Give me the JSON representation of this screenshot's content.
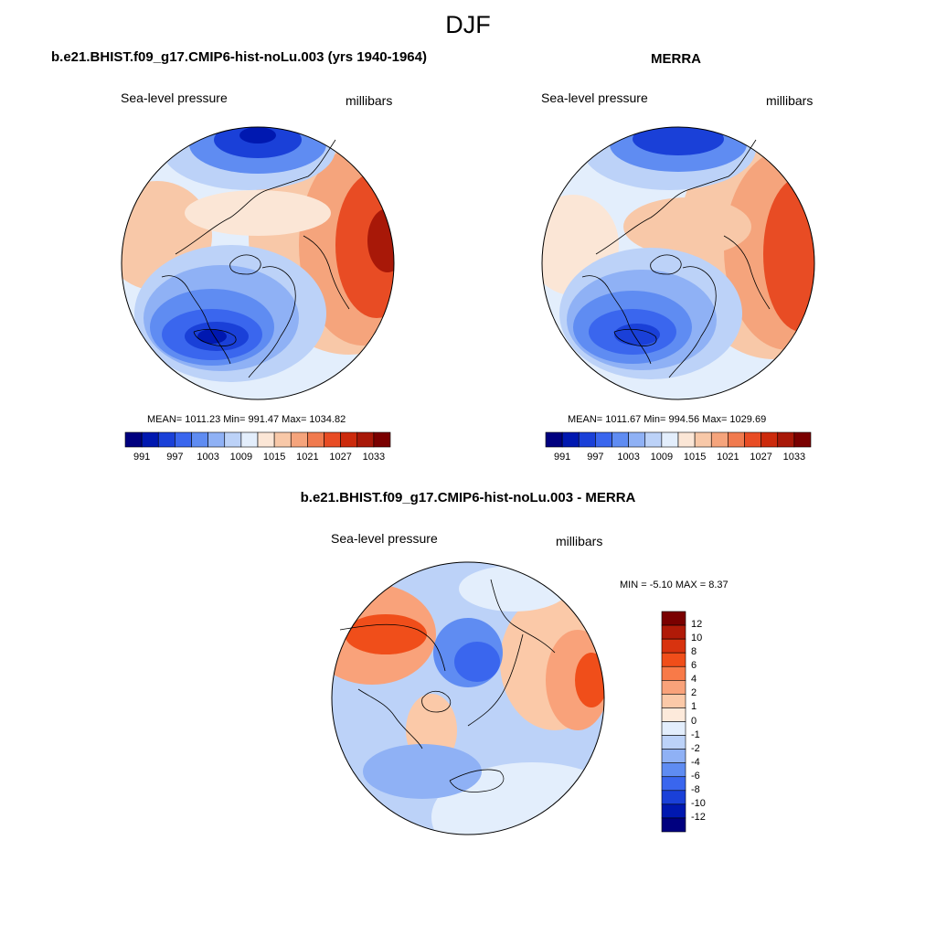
{
  "figure": {
    "title": "DJF"
  },
  "panels": [
    {
      "title": "b.e21.BHIST.f09_g17.CMIP6-hist-noLu.003 (yrs 1940-1964)",
      "variable": "Sea-level pressure",
      "units": "millibars",
      "stats": "MEAN= 1011.23  Min= 991.47  Max= 1034.82"
    },
    {
      "title": "MERRA",
      "variable": "Sea-level pressure",
      "units": "millibars",
      "stats": "MEAN= 1011.67  Min= 994.56  Max= 1029.69"
    },
    {
      "title": "b.e21.BHIST.f09_g17.CMIP6-hist-noLu.003 - MERRA",
      "variable": "Sea-level pressure",
      "units": "millibars",
      "stats": "MIN =  -5.10 MAX =   8.37"
    }
  ],
  "slp_colorbar": {
    "tick_labels": [
      "991",
      "997",
      "1003",
      "1009",
      "1015",
      "1021",
      "1027",
      "1033"
    ],
    "colors": [
      "#00007f",
      "#0018b0",
      "#1a40d8",
      "#3a66ee",
      "#5f8cf2",
      "#8fb1f5",
      "#bcd2f8",
      "#e3eefc",
      "#fbe6d6",
      "#f8c8a8",
      "#f5a47c",
      "#f07a4e",
      "#e84c24",
      "#cc2a0c",
      "#a81808",
      "#7a0000"
    ]
  },
  "diff_colorbar": {
    "tick_labels": [
      "12",
      "10",
      "8",
      "6",
      "4",
      "2",
      "1",
      "0",
      "-1",
      "-2",
      "-4",
      "-6",
      "-8",
      "-10",
      "-12"
    ],
    "colors": [
      "#7a0000",
      "#b01a08",
      "#d8330f",
      "#f04e1a",
      "#f87a48",
      "#f9a27a",
      "#fbc9a8",
      "#fdeadb",
      "#e3eefc",
      "#bcd2f8",
      "#8fb1f5",
      "#5f8cf2",
      "#3a66ee",
      "#1a40d8",
      "#0018b0",
      "#00007f"
    ]
  }
}
